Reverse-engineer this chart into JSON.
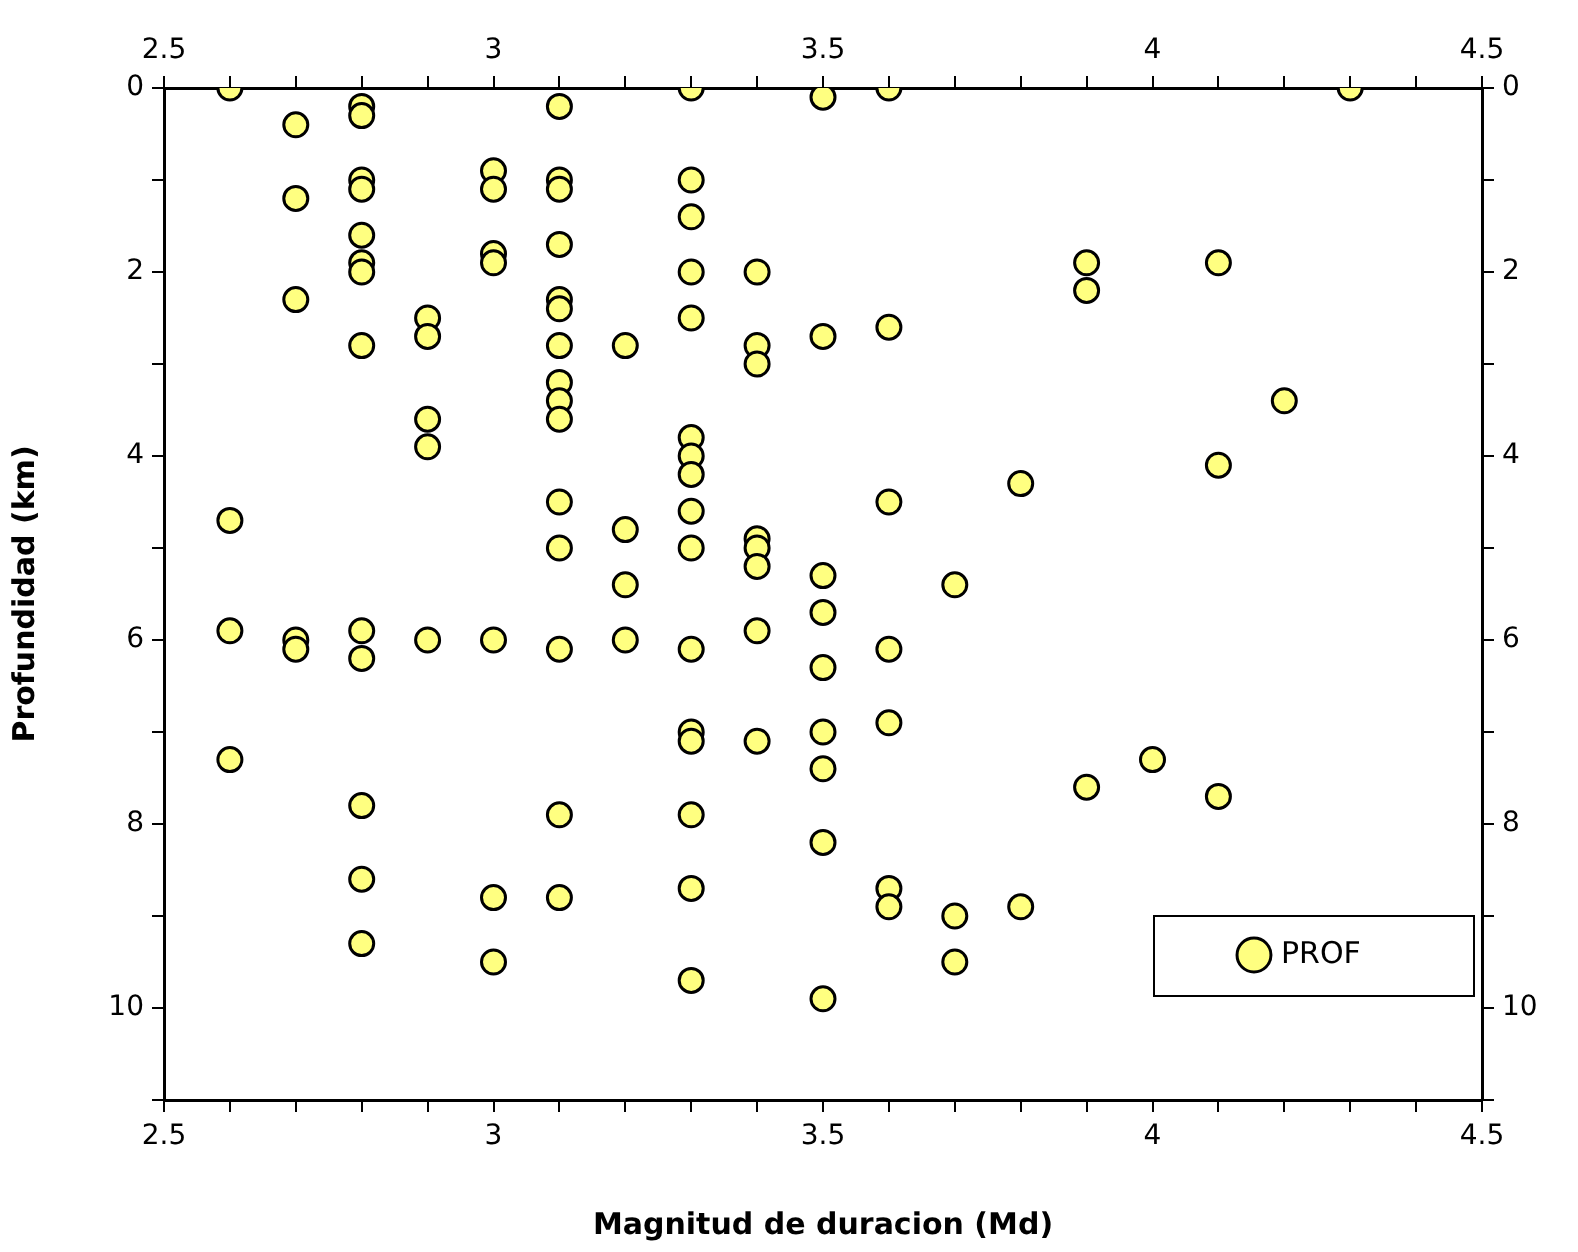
{
  "chart_data": {
    "type": "scatter",
    "xlabel": "Magnitud de duracion (Md)",
    "ylabel": "Profundidad (km)",
    "series": [
      {
        "name": "PROF",
        "color": "#ffff80",
        "x": [
          2.6,
          2.6,
          2.6,
          2.6,
          2.7,
          2.7,
          2.7,
          2.7,
          2.7,
          2.8,
          2.8,
          2.8,
          2.8,
          2.8,
          2.8,
          2.8,
          2.8,
          2.8,
          2.8,
          2.8,
          2.8,
          2.8,
          2.9,
          2.9,
          2.9,
          2.9,
          2.9,
          3.0,
          3.0,
          3.0,
          3.0,
          3.0,
          3.0,
          3.0,
          3.1,
          3.1,
          3.1,
          3.1,
          3.1,
          3.1,
          3.1,
          3.1,
          3.1,
          3.1,
          3.1,
          3.1,
          3.1,
          3.1,
          3.1,
          3.2,
          3.2,
          3.2,
          3.2,
          3.3,
          3.3,
          3.3,
          3.3,
          3.3,
          3.3,
          3.3,
          3.3,
          3.3,
          3.3,
          3.3,
          3.3,
          3.3,
          3.3,
          3.3,
          3.3,
          3.4,
          3.4,
          3.4,
          3.4,
          3.4,
          3.4,
          3.4,
          3.4,
          3.5,
          3.5,
          3.5,
          3.5,
          3.5,
          3.5,
          3.5,
          3.5,
          3.5,
          3.6,
          3.6,
          3.6,
          3.6,
          3.6,
          3.6,
          3.6,
          3.7,
          3.7,
          3.7,
          3.8,
          3.8,
          3.9,
          3.9,
          3.9,
          4.0,
          4.1,
          4.1,
          4.1,
          4.2,
          4.3
        ],
        "values": [
          0,
          4.7,
          5.9,
          7.3,
          0.4,
          1.2,
          2.3,
          6.0,
          6.1,
          0.2,
          0.3,
          1.0,
          1.1,
          1.6,
          1.9,
          2.0,
          2.8,
          5.9,
          6.2,
          7.8,
          8.6,
          9.3,
          2.5,
          2.7,
          3.6,
          3.9,
          6.0,
          0.9,
          1.1,
          1.8,
          1.9,
          6.0,
          8.8,
          9.5,
          0.2,
          1.0,
          1.1,
          1.7,
          2.3,
          2.4,
          2.8,
          3.2,
          3.4,
          3.6,
          4.5,
          5.0,
          6.1,
          7.9,
          8.8,
          2.8,
          4.8,
          5.4,
          6.0,
          0,
          1.0,
          1.4,
          2.0,
          2.5,
          3.8,
          4.0,
          4.2,
          4.6,
          5.0,
          6.1,
          7.0,
          7.1,
          7.9,
          8.7,
          9.7,
          2.0,
          2.8,
          3.0,
          4.9,
          5.0,
          5.2,
          5.9,
          7.1,
          0.1,
          2.7,
          5.3,
          5.7,
          6.3,
          7.0,
          7.4,
          8.2,
          9.9,
          0,
          2.6,
          4.5,
          6.1,
          6.9,
          8.7,
          8.9,
          5.4,
          9.0,
          9.5,
          4.3,
          8.9,
          1.9,
          2.2,
          7.6,
          7.3,
          1.9,
          4.1,
          7.7,
          3.4,
          0
        ]
      }
    ],
    "marker": "circle",
    "xlim": [
      2.5,
      4.5
    ],
    "xticks": [
      2.5,
      {
        "value": 2.6,
        "label": null
      },
      {
        "value": 2.7,
        "label": null
      },
      {
        "value": 2.8,
        "label": null
      },
      {
        "value": 2.9,
        "label": null
      },
      3,
      {
        "value": 3.1,
        "label": null
      },
      {
        "value": 3.2,
        "label": null
      },
      {
        "value": 3.3,
        "label": null
      },
      {
        "value": 3.4,
        "label": null
      },
      3.5,
      {
        "value": 3.6,
        "label": null
      },
      {
        "value": 3.7,
        "label": null
      },
      {
        "value": 3.8,
        "label": null
      },
      {
        "value": 3.9,
        "label": null
      },
      4,
      {
        "value": 4.1,
        "label": null
      },
      {
        "value": 4.2,
        "label": null
      },
      {
        "value": 4.3,
        "label": null
      },
      {
        "value": 4.4,
        "label": null
      },
      4.5
    ],
    "x2lim": [
      2.5,
      4.5
    ],
    "x2ticks": [
      2.5,
      {
        "value": 2.6,
        "label": null
      },
      {
        "value": 2.7,
        "label": null
      },
      {
        "value": 2.8,
        "label": null
      },
      {
        "value": 2.9,
        "label": null
      },
      3,
      {
        "value": 3.1,
        "label": null
      },
      {
        "value": 3.2,
        "label": null
      },
      {
        "value": 3.3,
        "label": null
      },
      {
        "value": 3.4,
        "label": null
      },
      3.5,
      {
        "value": 3.6,
        "label": null
      },
      {
        "value": 3.7,
        "label": null
      },
      {
        "value": 3.8,
        "label": null
      },
      {
        "value": 3.9,
        "label": null
      },
      4,
      {
        "value": 4.1,
        "label": null
      },
      {
        "value": 4.2,
        "label": null
      },
      {
        "value": 4.3,
        "label": null
      },
      {
        "value": 4.4,
        "label": null
      },
      4.5
    ],
    "ylim": [
      11,
      0
    ],
    "yticks": [
      0,
      {
        "value": 1,
        "label": null
      },
      2,
      {
        "value": 3,
        "label": null
      },
      4,
      {
        "value": 5,
        "label": null
      },
      6,
      {
        "value": 7,
        "label": null
      },
      8,
      {
        "value": 9,
        "label": null
      },
      10,
      {
        "value": 11,
        "label": null
      }
    ],
    "y2lim": [
      11,
      0
    ],
    "y2ticks": [
      0,
      {
        "value": 1,
        "label": null
      },
      2,
      {
        "value": 3,
        "label": null
      },
      4,
      {
        "value": 5,
        "label": null
      },
      6,
      {
        "value": 7,
        "label": null
      },
      8,
      {
        "value": 9,
        "label": null
      },
      10,
      {
        "value": 11,
        "label": null
      }
    ],
    "grid": false,
    "legend": "bottom right"
  }
}
